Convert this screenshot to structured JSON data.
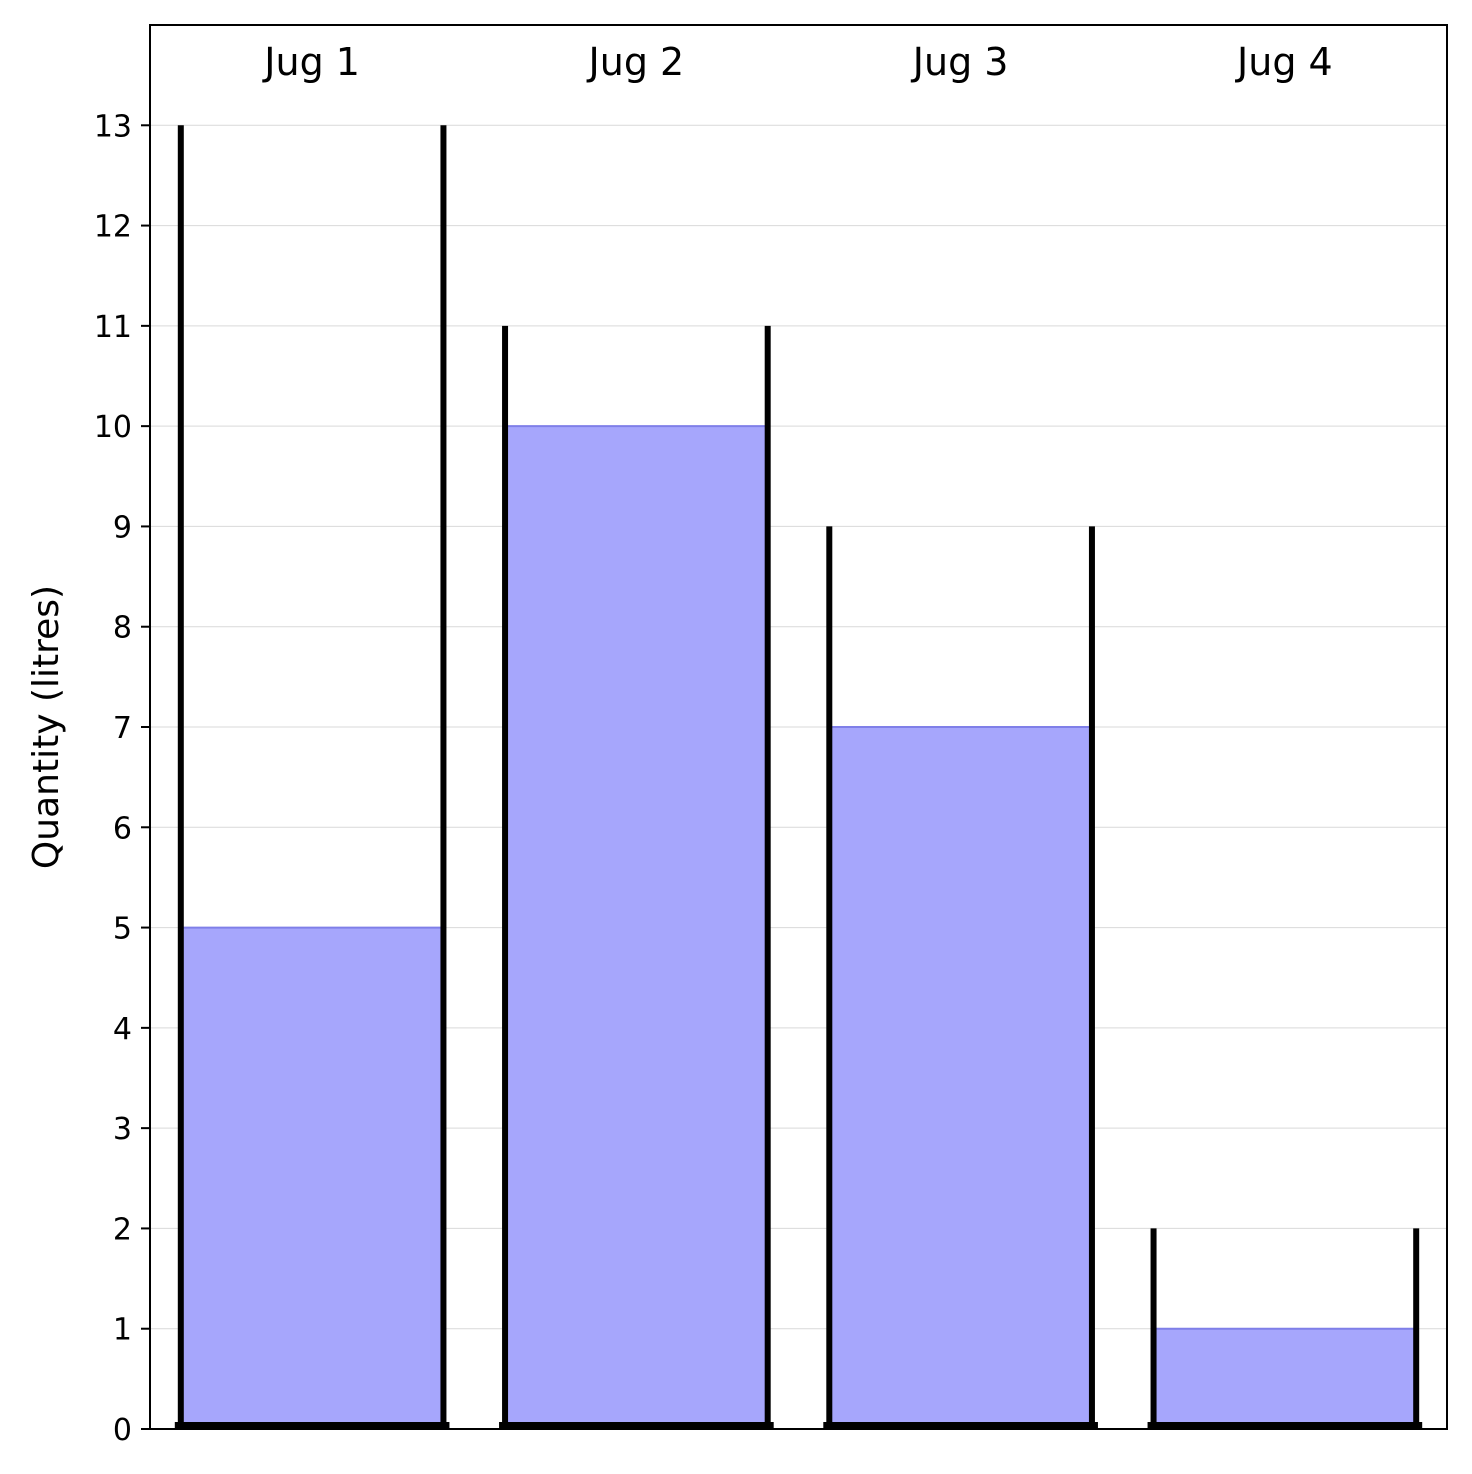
{
  "chart_data": {
    "type": "bar",
    "title": "",
    "xlabel": "",
    "ylabel": "Quantity (litres)",
    "categories": [
      "Jug 1",
      "Jug 2",
      "Jug 3",
      "Jug 4"
    ],
    "capacities": [
      13,
      11,
      9,
      2
    ],
    "values": [
      5,
      10,
      7,
      1
    ],
    "ylim": [
      0,
      14
    ],
    "yticks": [
      0,
      1,
      2,
      3,
      4,
      5,
      6,
      7,
      8,
      9,
      10,
      11,
      12,
      13
    ],
    "grid": true,
    "legend": "none"
  },
  "colors": {
    "fill": "#a6a6fc",
    "fill_edge": "#7f7fe8",
    "jug_wall": "#000000",
    "grid": "#d9d9d9",
    "axes": "#000000"
  }
}
